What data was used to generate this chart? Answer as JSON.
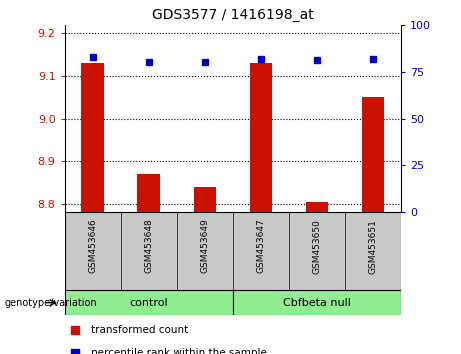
{
  "title": "GDS3577 / 1416198_at",
  "samples": [
    "GSM453646",
    "GSM453648",
    "GSM453649",
    "GSM453647",
    "GSM453650",
    "GSM453651"
  ],
  "transformed_counts": [
    9.13,
    8.87,
    8.84,
    9.13,
    8.805,
    9.05
  ],
  "percentile_ranks": [
    83,
    80,
    80,
    82,
    81,
    82
  ],
  "ylim_left": [
    8.78,
    9.22
  ],
  "ylim_right": [
    0,
    100
  ],
  "yticks_left": [
    8.8,
    8.9,
    9.0,
    9.1,
    9.2
  ],
  "yticks_right": [
    0,
    25,
    50,
    75,
    100
  ],
  "bar_color": "#CC1100",
  "dot_color": "#0000CC",
  "label_color_left": "#CC1100",
  "label_color_right": "#0000CC",
  "legend_items": [
    "transformed count",
    "percentile rank within the sample"
  ],
  "group_spans": [
    [
      "control",
      0,
      3
    ],
    [
      "Cbfbeta null",
      3,
      6
    ]
  ],
  "group_color": "#90EE90",
  "sample_bg": "#C8C8C8"
}
